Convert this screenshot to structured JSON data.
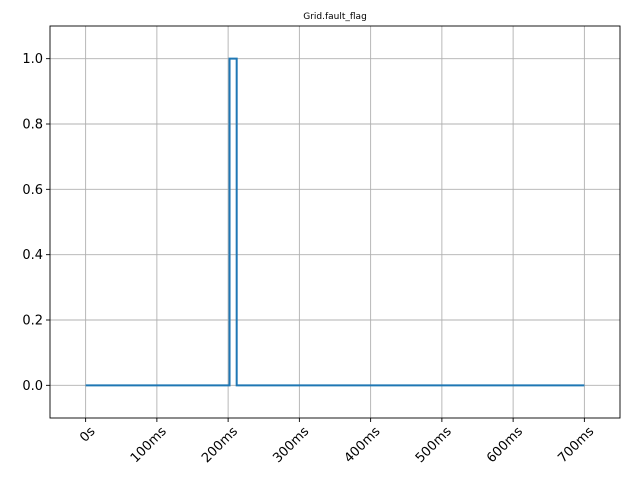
{
  "chart_data": {
    "type": "line",
    "title": "Grid.fault_flag",
    "xlabel": "",
    "ylabel": "",
    "x_unit": "ms",
    "xlim": [
      -50,
      750
    ],
    "ylim": [
      -0.1,
      1.1
    ],
    "x_ticks": [
      {
        "value": 0,
        "label": "0s"
      },
      {
        "value": 100,
        "label": "100ms"
      },
      {
        "value": 200,
        "label": "200ms"
      },
      {
        "value": 300,
        "label": "300ms"
      },
      {
        "value": 400,
        "label": "400ms"
      },
      {
        "value": 500,
        "label": "500ms"
      },
      {
        "value": 600,
        "label": "600ms"
      },
      {
        "value": 700,
        "label": "700ms"
      }
    ],
    "y_ticks": [
      {
        "value": 0.0,
        "label": "0.0"
      },
      {
        "value": 0.2,
        "label": "0.2"
      },
      {
        "value": 0.4,
        "label": "0.4"
      },
      {
        "value": 0.6,
        "label": "0.6"
      },
      {
        "value": 0.8,
        "label": "0.8"
      },
      {
        "value": 1.0,
        "label": "1.0"
      }
    ],
    "grid": true,
    "series": [
      {
        "color": "#1f77b4",
        "step": true,
        "points": [
          {
            "x": 0,
            "y": 0
          },
          {
            "x": 202,
            "y": 0
          },
          {
            "x": 202,
            "y": 1
          },
          {
            "x": 212,
            "y": 1
          },
          {
            "x": 212,
            "y": 0
          },
          {
            "x": 700,
            "y": 0
          }
        ]
      }
    ]
  }
}
